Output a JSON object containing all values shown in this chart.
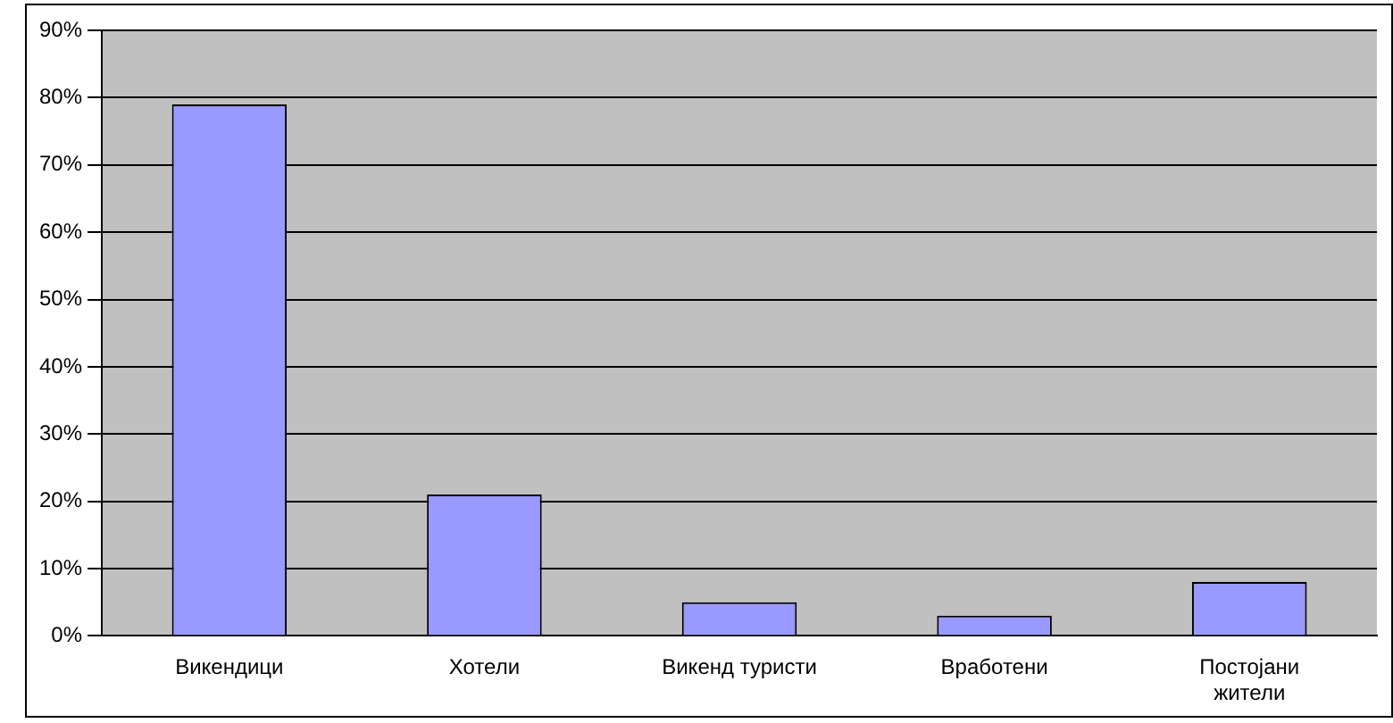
{
  "chart_data": {
    "type": "bar",
    "categories": [
      "Викендици",
      "Хотели",
      "Викенд туристи",
      "Вработени",
      "Постојани жители"
    ],
    "values": [
      79,
      21,
      5,
      3,
      8
    ],
    "color": "#9999ff",
    "ylim": [
      0,
      90
    ],
    "yticks": [
      {
        "value": 0,
        "label": "0%"
      },
      {
        "value": 10,
        "label": "10%"
      },
      {
        "value": 20,
        "label": "20%"
      },
      {
        "value": 30,
        "label": "30%"
      },
      {
        "value": 40,
        "label": "40%"
      },
      {
        "value": 50,
        "label": "50%"
      },
      {
        "value": 60,
        "label": "60%"
      },
      {
        "value": 70,
        "label": "70%"
      },
      {
        "value": 80,
        "label": "80%"
      },
      {
        "value": 90,
        "label": "90%"
      }
    ],
    "grid": "y",
    "legend": false
  }
}
